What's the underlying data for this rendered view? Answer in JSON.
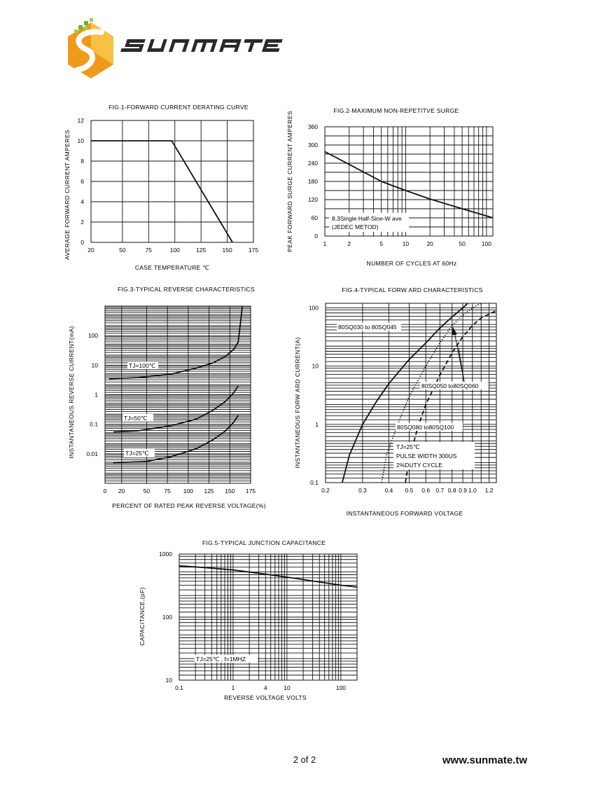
{
  "brand": {
    "name": "SUNMATE",
    "website": "www.sunmate.tw"
  },
  "page": {
    "number": "2 of 2"
  },
  "colors": {
    "ink": "#111111",
    "logo_orange": "#ef9a1a",
    "logo_yellow": "#f6c243",
    "logo_green": "#6fae3c",
    "wordmark": "#2a2a2a"
  },
  "chart_data": [
    {
      "id": "fig1",
      "type": "line",
      "title": "FIG.1-FORWARD CURRENT DERATING CURVE",
      "xlabel": "CASE TEMPERATURE ℃",
      "ylabel": "AVERAGE FORWARD CURRENT AMPERES",
      "xscale": "linear",
      "yscale": "linear",
      "xlim": [
        20,
        175
      ],
      "ylim": [
        0,
        12
      ],
      "xticks": [
        20,
        50,
        75,
        100,
        125,
        150,
        175
      ],
      "yticks": [
        0,
        2,
        4,
        6,
        8,
        10,
        12
      ],
      "grid": true,
      "series": [
        {
          "points": [
            [
              20,
              10
            ],
            [
              97,
              10
            ],
            [
              155,
              0
            ]
          ]
        }
      ]
    },
    {
      "id": "fig2",
      "type": "line",
      "title": "FIG.2-MAXIMUM NON-REPETITVE SURGE",
      "xlabel": "NUMBER OF CYCLES AT 60Hz",
      "ylabel": "PEAK FORWARD SURGE CURRENT AMPERES",
      "xscale": "log",
      "yscale": "linear",
      "xlim": [
        1,
        120
      ],
      "ylim": [
        0,
        360
      ],
      "xticks": [
        1,
        2,
        5,
        10,
        20,
        50,
        100
      ],
      "yticks": [
        0,
        60,
        120,
        180,
        240,
        300,
        360
      ],
      "grid": true,
      "annotations": [
        "8.3Single Half-Sine-W ave",
        "(JEDEC METOD)"
      ],
      "series": [
        {
          "points": [
            [
              1,
              278
            ],
            [
              2,
              236
            ],
            [
              5,
              180
            ],
            [
              10,
              150
            ],
            [
              20,
              122
            ],
            [
              50,
              90
            ],
            [
              120,
              60
            ]
          ]
        }
      ]
    },
    {
      "id": "fig3",
      "type": "line",
      "title": "FIG.3-TYPICAL REVERSE CHARACTERISTICS",
      "xlabel": "PERCENT OF RATED PEAK REVERSE VOLTAGE(%)",
      "ylabel": "INSTANTANEOUS REVERSE CURRENT(mA)",
      "xscale": "linear",
      "yscale": "log",
      "xlim": [
        0,
        175
      ],
      "ylim": [
        0.001,
        1000
      ],
      "xticks": [
        0,
        20,
        50,
        75,
        100,
        125,
        150,
        175
      ],
      "yticks": [
        0.01,
        0.1,
        1,
        10,
        100
      ],
      "grid": true,
      "series": [
        {
          "name": "TJ=100℃",
          "points": [
            [
              5,
              3.5
            ],
            [
              40,
              3.8
            ],
            [
              80,
              5
            ],
            [
              110,
              8
            ],
            [
              130,
              12
            ],
            [
              145,
              20
            ],
            [
              155,
              35
            ],
            [
              160,
              60
            ],
            [
              163,
              300
            ],
            [
              165,
              1000
            ]
          ]
        },
        {
          "name": "TJ=50℃",
          "points": [
            [
              10,
              0.055
            ],
            [
              40,
              0.06
            ],
            [
              80,
              0.09
            ],
            [
              110,
              0.15
            ],
            [
              130,
              0.3
            ],
            [
              145,
              0.6
            ],
            [
              155,
              1.2
            ],
            [
              160,
              2
            ]
          ]
        },
        {
          "name": "TJ=25℃",
          "points": [
            [
              10,
              0.005
            ],
            [
              50,
              0.0055
            ],
            [
              80,
              0.008
            ],
            [
              110,
              0.015
            ],
            [
              130,
              0.03
            ],
            [
              145,
              0.06
            ],
            [
              155,
              0.12
            ],
            [
              160,
              0.2
            ]
          ]
        }
      ]
    },
    {
      "id": "fig4",
      "type": "line",
      "title": "FIG.4-TYPICAL FORW ARD CHARACTERISTICS",
      "xlabel": "INSTANTANEOUS FORWARD VOLTAGE",
      "ylabel": "INSTANTANEOUS FORW ARD CURRENT(A)",
      "xscale": "log",
      "yscale": "log",
      "xlim": [
        0.2,
        1.3
      ],
      "ylim": [
        0.1,
        120
      ],
      "xticks": [
        0.2,
        0.3,
        0.4,
        0.5,
        0.6,
        0.7,
        0.8,
        0.9,
        1.0,
        1.2
      ],
      "yticks": [
        0.1,
        1,
        10,
        100
      ],
      "grid": true,
      "annotations": [
        "TJ=25℃",
        "PULSE WIDTH 300US",
        "2%DUTY CYCLE"
      ],
      "series": [
        {
          "name": "80SQ030 to 80SQ045",
          "style": "solid",
          "points": [
            [
              0.24,
              0.1
            ],
            [
              0.26,
              0.3
            ],
            [
              0.3,
              1
            ],
            [
              0.35,
              2.5
            ],
            [
              0.4,
              5
            ],
            [
              0.5,
              13
            ],
            [
              0.6,
              25
            ],
            [
              0.7,
              45
            ],
            [
              0.8,
              70
            ],
            [
              0.9,
              100
            ],
            [
              0.95,
              120
            ]
          ]
        },
        {
          "name": "80SQ050 to80SQ060",
          "style": "dotted",
          "points": [
            [
              0.37,
              0.1
            ],
            [
              0.39,
              0.3
            ],
            [
              0.45,
              1.2
            ],
            [
              0.5,
              3
            ],
            [
              0.6,
              10
            ],
            [
              0.7,
              25
            ],
            [
              0.8,
              50
            ],
            [
              0.9,
              75
            ],
            [
              1.0,
              100
            ],
            [
              1.1,
              120
            ]
          ]
        },
        {
          "name": "80SQ080 to80SQ100",
          "style": "dashed",
          "points": [
            [
              0.48,
              0.1
            ],
            [
              0.5,
              0.25
            ],
            [
              0.55,
              0.9
            ],
            [
              0.6,
              2.2
            ],
            [
              0.7,
              7
            ],
            [
              0.8,
              17
            ],
            [
              0.9,
              32
            ],
            [
              1.0,
              50
            ],
            [
              1.1,
              67
            ],
            [
              1.3,
              90
            ]
          ]
        }
      ]
    },
    {
      "id": "fig5",
      "type": "line",
      "title": "FIG.5-TYPICAL JUNCTION CAPACITANCE",
      "xlabel": "REVERSE VOLTAGE VOLTS",
      "ylabel": "CAPACITANCE,(pF)",
      "xscale": "log",
      "yscale": "log",
      "xlim": [
        0.1,
        200
      ],
      "ylim": [
        10,
        1000
      ],
      "xticks": [
        0.1,
        1,
        4,
        10,
        100
      ],
      "yticks": [
        10,
        100,
        1000
      ],
      "grid": true,
      "annotations": [
        "TJ=25℃ , f=1MHZ"
      ],
      "series": [
        {
          "points": [
            [
              0.1,
              650
            ],
            [
              0.3,
              610
            ],
            [
              1,
              560
            ],
            [
              4,
              480
            ],
            [
              10,
              430
            ],
            [
              40,
              360
            ],
            [
              100,
              320
            ],
            [
              200,
              300
            ]
          ]
        }
      ]
    }
  ]
}
